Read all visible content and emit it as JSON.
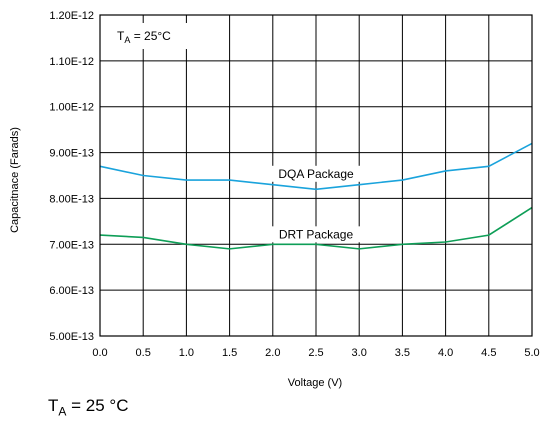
{
  "chart_data": {
    "type": "line",
    "xlabel": "Voltage (V)",
    "ylabel": "Capacitnace (Farads)",
    "xlim": [
      0,
      5
    ],
    "ylim": [
      5e-13,
      1.2e-12
    ],
    "grid": true,
    "x_ticks": [
      "0.0",
      "0.5",
      "1.0",
      "1.5",
      "2.0",
      "2.5",
      "3.0",
      "3.5",
      "4.0",
      "4.5",
      "5.0"
    ],
    "y_ticks": [
      "5.00E-13",
      "6.00E-13",
      "7.00E-13",
      "8.00E-13",
      "9.00E-13",
      "1.00E-12",
      "1.10E-12",
      "1.20E-12"
    ],
    "x": [
      0.0,
      0.5,
      1.0,
      1.5,
      2.0,
      2.5,
      3.0,
      3.5,
      4.0,
      4.5,
      5.0
    ],
    "series": [
      {
        "name": "DQA Package",
        "color": "#1aa3dc",
        "values": [
          8.7e-13,
          8.5e-13,
          8.4e-13,
          8.4e-13,
          8.3e-13,
          8.2e-13,
          8.3e-13,
          8.4e-13,
          8.6e-13,
          8.7e-13,
          9.2e-13
        ]
      },
      {
        "name": "DRT Package",
        "color": "#0e9e57",
        "values": [
          7.2e-13,
          7.15e-13,
          7e-13,
          6.9e-13,
          7e-13,
          7e-13,
          6.9e-13,
          7e-13,
          7.05e-13,
          7.2e-13,
          7.8e-13
        ]
      }
    ],
    "annotation": {
      "t_symbol": "T",
      "t_subscript": "A",
      "t_value": " = 25°C"
    }
  },
  "caption": {
    "t_symbol": "T",
    "t_subscript": "A",
    "t_value": " = 25 °C"
  }
}
